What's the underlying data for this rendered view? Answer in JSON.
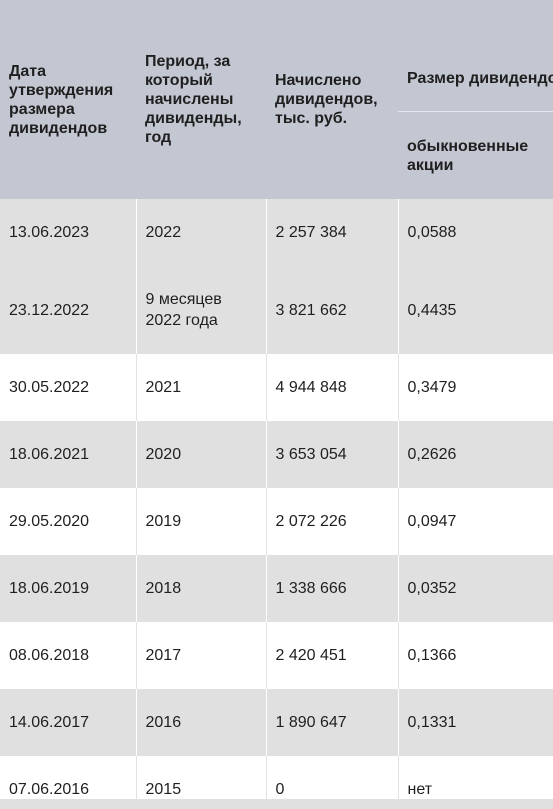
{
  "table": {
    "headers": {
      "date": "Дата утверждения размера дивидендов",
      "period": "Период, за который начислены дивиденды, год",
      "accrued": "Начислено дивидендов, тыс. руб.",
      "size_group": "Размер дивидендов, руб.",
      "ordinary": "обыкновенные акции"
    },
    "rows": [
      {
        "date": "13.06.2023",
        "period": "2022",
        "accrued": "2 257 384",
        "ordinary": "0,0588"
      },
      {
        "date": "23.12.2022",
        "period": "9 месяцев 2022 года",
        "accrued": "3 821 662",
        "ordinary": "0,4435"
      },
      {
        "date": "30.05.2022",
        "period": "2021",
        "accrued": "4 944 848",
        "ordinary": "0,3479"
      },
      {
        "date": "18.06.2021",
        "period": "2020",
        "accrued": "3 653 054",
        "ordinary": "0,2626"
      },
      {
        "date": "29.05.2020",
        "period": "2019",
        "accrued": "2 072 226",
        "ordinary": "0,0947"
      },
      {
        "date": "18.06.2019",
        "period": "2018",
        "accrued": "1 338 666",
        "ordinary": "0,0352"
      },
      {
        "date": "08.06.2018",
        "period": "2017",
        "accrued": "2 420 451",
        "ordinary": "0,1366"
      },
      {
        "date": "14.06.2017",
        "period": "2016",
        "accrued": "1 890 647",
        "ordinary": "0,1331"
      },
      {
        "date": "07.06.2016",
        "period": "2015",
        "accrued": "0",
        "ordinary": "нет"
      }
    ]
  }
}
